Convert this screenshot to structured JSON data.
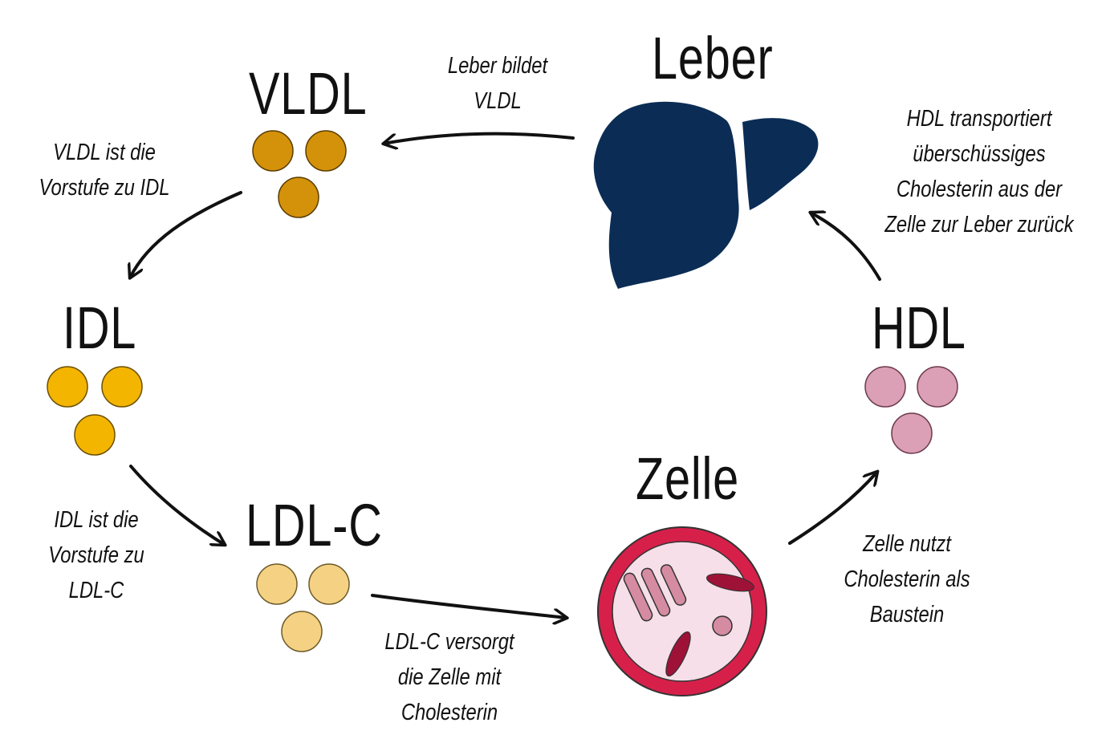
{
  "nodes": {
    "vldl": {
      "label": "VLDL",
      "color": "#D4920A"
    },
    "idl": {
      "label": "IDL",
      "color": "#F3B500"
    },
    "ldl": {
      "label": "LDL-C",
      "color": "#F5D283"
    },
    "hdl": {
      "label": "HDL",
      "color": "#DBA0B5"
    },
    "leber": {
      "label": "Leber",
      "color": "#0B2D55"
    },
    "zelle": {
      "label": "Zelle",
      "color": "#D6204A"
    }
  },
  "annotations": {
    "leber_vldl": [
      "Leber bildet",
      "VLDL"
    ],
    "vldl_idl": [
      "VLDL ist die",
      "Vorstufe zu IDL"
    ],
    "idl_ldl": [
      "IDL ist die",
      "Vorstufe zu",
      "LDL-C"
    ],
    "ldl_zelle": [
      "LDL-C versorgt",
      "die Zelle mit",
      "Cholesterin"
    ],
    "zelle_hdl": [
      "Zelle nutzt",
      "Cholesterin als",
      "Baustein"
    ],
    "hdl_leber": [
      "HDL transportiert",
      "überschüssiges",
      "Cholesterin aus der",
      "Zelle zur Leber zurück"
    ]
  }
}
